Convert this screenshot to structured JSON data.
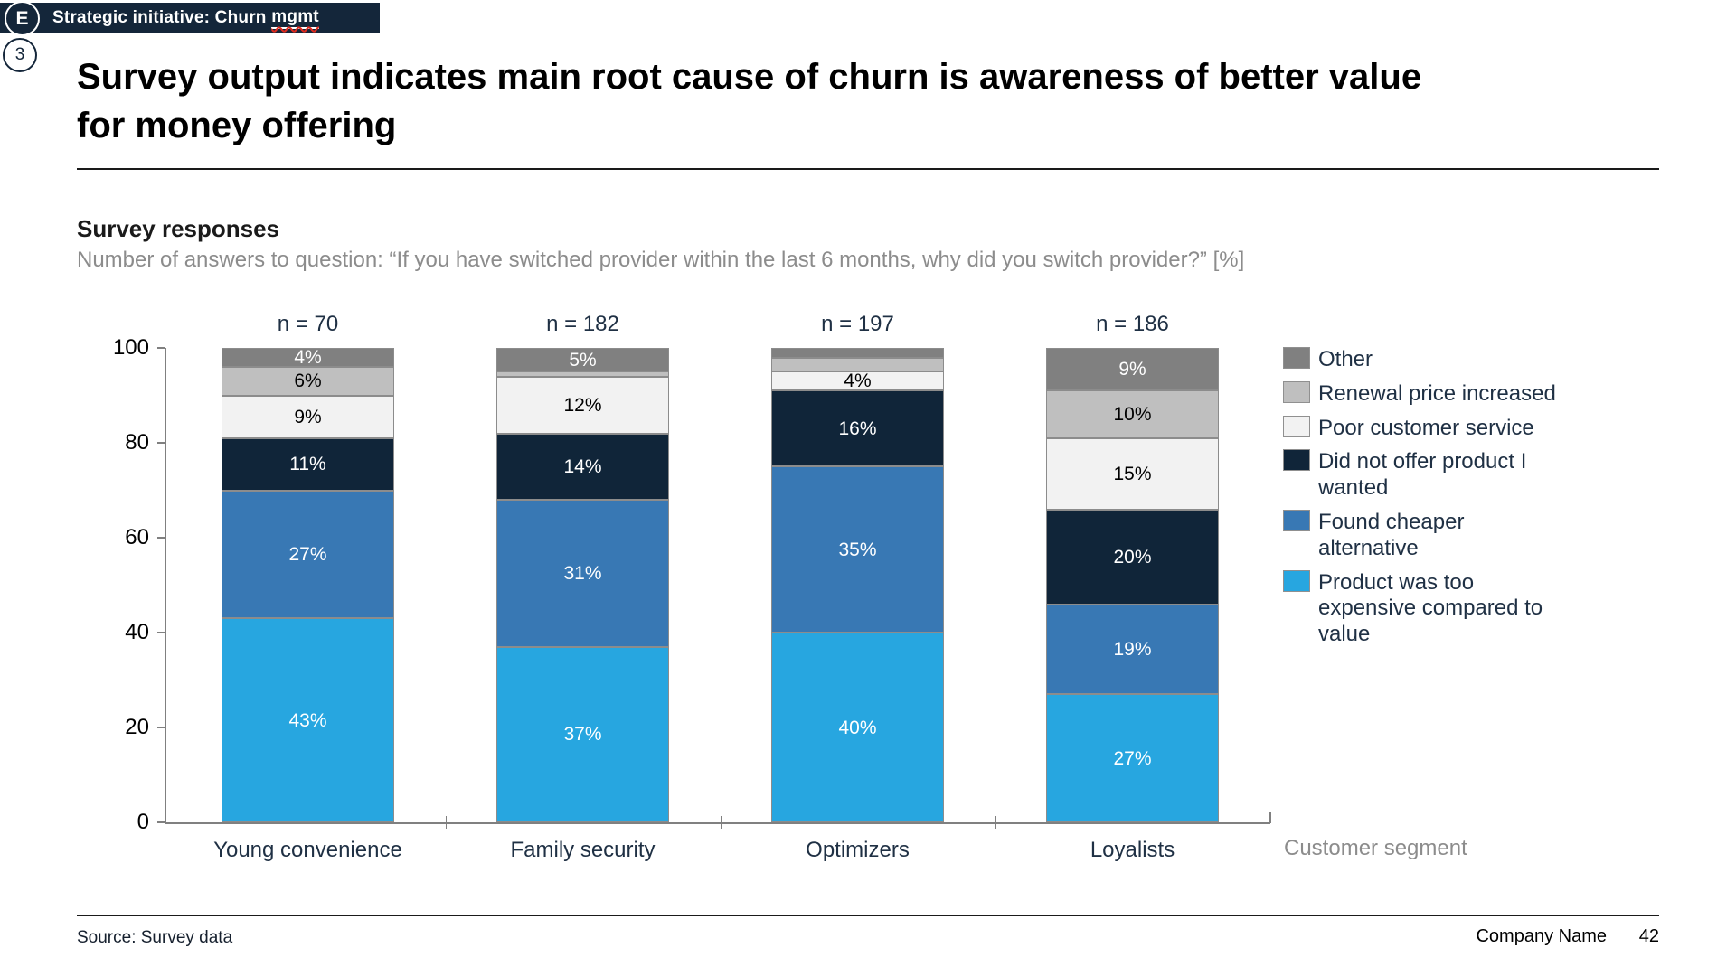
{
  "header": {
    "badge_letter": "E",
    "bar_text": "Strategic initiative: Churn",
    "bar_text_misspelled": "mgmt",
    "slide_tag_number": "3"
  },
  "title": "Survey output indicates main root cause of churn is awareness of better value for money offering",
  "section": {
    "heading": "Survey responses",
    "subtitle": "Number of answers to question: “If you have switched provider within the last 6 months, why did you switch provider?” [%]"
  },
  "chart_data": {
    "type": "bar",
    "stacked": true,
    "unit": "%",
    "title": "Survey responses",
    "xlabel": "Customer segment",
    "ylabel": "",
    "ylim": [
      0,
      100
    ],
    "yticks": [
      0,
      20,
      40,
      60,
      80,
      100
    ],
    "grid": false,
    "legend_position": "right",
    "categories": [
      "Young convenience",
      "Family security",
      "Optimizers",
      "Loyalists"
    ],
    "sample_sizes": [
      "n = 70",
      "n = 182",
      "n = 197",
      "n = 186"
    ],
    "label_min_value": 4,
    "series": [
      {
        "name": "Product was too expensive compared to value",
        "color": "#27a6e0",
        "label_color": "#ffffff",
        "values": [
          43,
          37,
          40,
          27
        ]
      },
      {
        "name": "Found cheaper alternative",
        "color": "#3878b4",
        "label_color": "#ffffff",
        "values": [
          27,
          31,
          35,
          19
        ]
      },
      {
        "name": "Did not offer product I wanted",
        "color": "#102539",
        "label_color": "#ffffff",
        "values": [
          11,
          14,
          16,
          20
        ]
      },
      {
        "name": "Poor customer service",
        "color": "#f2f2f2",
        "label_color": "#000000",
        "values": [
          9,
          12,
          4,
          15
        ]
      },
      {
        "name": "Renewal price increased",
        "color": "#bfbfbf",
        "label_color": "#000000",
        "values": [
          6,
          1,
          3,
          10
        ]
      },
      {
        "name": "Other",
        "color": "#808080",
        "label_color": "#ffffff",
        "values": [
          4,
          5,
          2,
          9
        ]
      }
    ]
  },
  "footer": {
    "source": "Source: Survey data",
    "company": "Company Name",
    "page_number": "42"
  }
}
